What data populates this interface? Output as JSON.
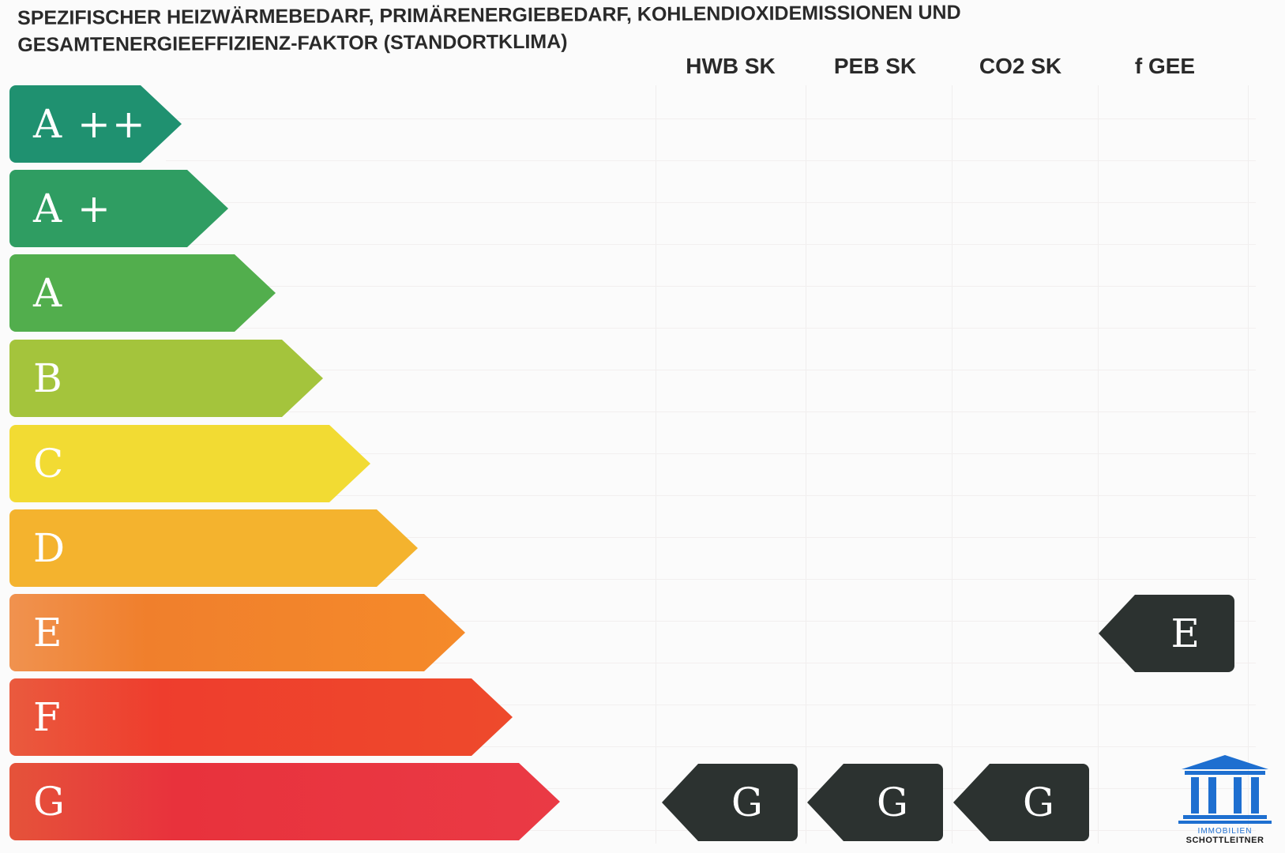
{
  "title": {
    "line1": "SPEZIFISCHER HEIZWÄRMEBEDARF, PRIMÄRENERGIEBEDARF, KOHLENDIOXIDEMISSIONEN UND",
    "line2": "GESAMTENERGIEEFFIZIENZ-FAKTOR (STANDORTKLIMA)"
  },
  "columns": [
    "HWB SK",
    "PEB SK",
    "CO2 SK",
    "f GEE"
  ],
  "classes": [
    {
      "label": "A ++",
      "color": "#1f9170"
    },
    {
      "label": "A +",
      "color": "#2f9d62"
    },
    {
      "label": "A",
      "color": "#52ae4d"
    },
    {
      "label": "B",
      "color": "#a4c43c"
    },
    {
      "label": "C",
      "color": "#f2db33"
    },
    {
      "label": "D",
      "color": "#f4b32e"
    },
    {
      "label": "E",
      "color": "#f08a32"
    },
    {
      "label": "F",
      "color": "#ec4a2e"
    },
    {
      "label": "G",
      "color": "#e8383c"
    }
  ],
  "ratings": {
    "HWB SK": "G",
    "PEB SK": "G",
    "CO2 SK": "G",
    "f GEE": "E"
  },
  "indicator_color": "#2c3230",
  "logo": {
    "line1": "IMMOBILIEN",
    "line2": "SCHOTTLEITNER",
    "color": "#1e6fd0"
  }
}
